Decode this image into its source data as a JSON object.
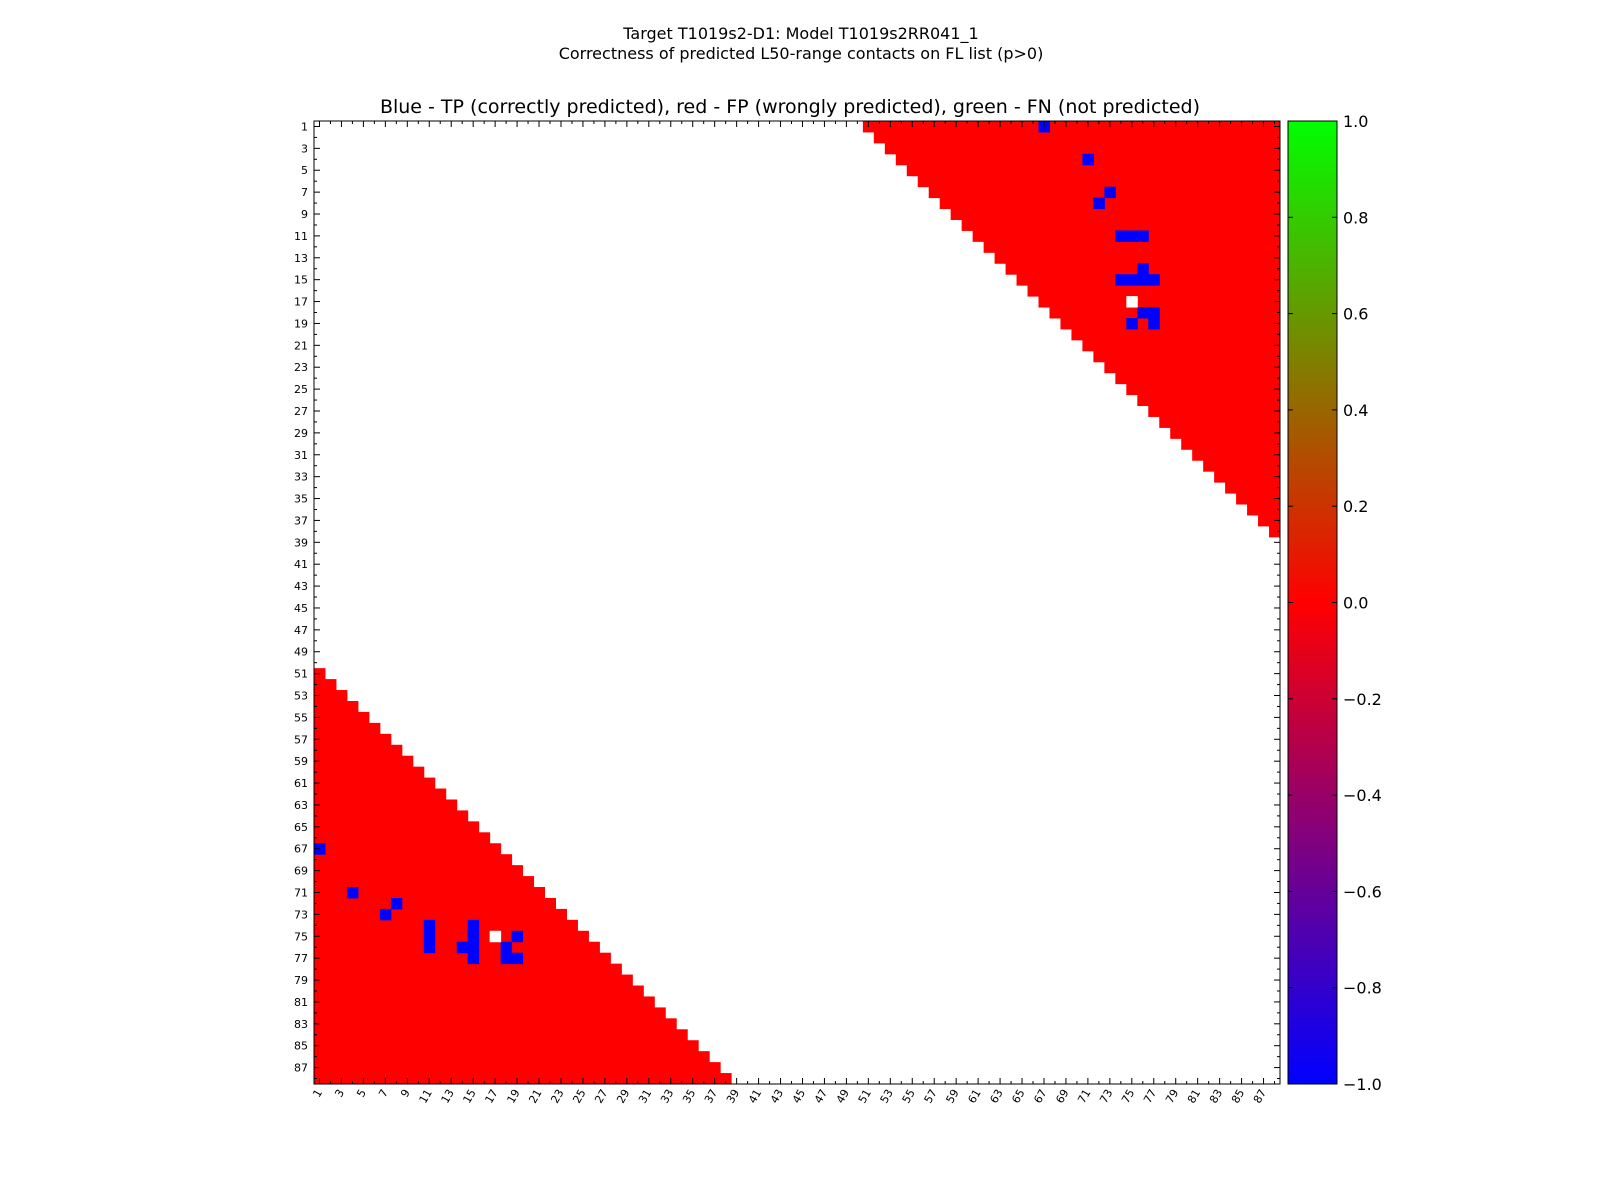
{
  "chart_data": {
    "type": "heatmap",
    "title_line1": "Target T1019s2-D1: Model T1019s2RR041_1",
    "title_line2": "Correctness of predicted L50-range contacts on FL list (p>0)",
    "subtitle": "Blue - TP (correctly predicted), red - FP (wrongly predicted), green - FN (not predicted)",
    "n_residues": 88,
    "x_range": [
      1,
      88
    ],
    "y_range": [
      1,
      88
    ],
    "tick_labels": [
      "1",
      "3",
      "5",
      "7",
      "9",
      "11",
      "13",
      "15",
      "17",
      "19",
      "21",
      "23",
      "25",
      "27",
      "29",
      "31",
      "33",
      "35",
      "37",
      "39",
      "41",
      "43",
      "45",
      "47",
      "49",
      "51",
      "53",
      "55",
      "57",
      "59",
      "61",
      "63",
      "65",
      "67",
      "69",
      "71",
      "73",
      "75",
      "77",
      "79",
      "81",
      "83",
      "85",
      "87"
    ],
    "min_separation": 50,
    "fill_value": 0.0,
    "tp_contacts": [
      [
        1,
        67
      ],
      [
        4,
        71
      ],
      [
        7,
        73
      ],
      [
        8,
        72
      ],
      [
        11,
        74
      ],
      [
        11,
        75
      ],
      [
        11,
        76
      ],
      [
        14,
        76
      ],
      [
        15,
        74
      ],
      [
        15,
        75
      ],
      [
        15,
        76
      ],
      [
        15,
        77
      ],
      [
        18,
        76
      ],
      [
        18,
        77
      ],
      [
        19,
        75
      ],
      [
        19,
        77
      ]
    ],
    "white_cells": [
      [
        17,
        75
      ]
    ],
    "colorbar": {
      "min": -1.0,
      "max": 1.0,
      "ticks": [
        "1.0",
        "0.8",
        "0.6",
        "0.4",
        "0.2",
        "0.0",
        "−0.2",
        "−0.4",
        "−0.6",
        "−0.8",
        "−1.0"
      ],
      "colors": [
        "#0000ff",
        "#ff0000",
        "#00ff00"
      ]
    },
    "colors": {
      "tp": "#0000ff",
      "fp": "#ff0000",
      "fn": "#00ff00",
      "empty": "#ffffff"
    }
  }
}
